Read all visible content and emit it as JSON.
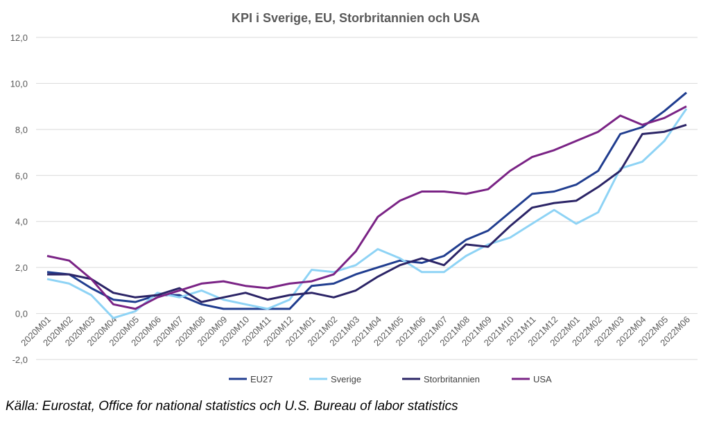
{
  "chart_data": {
    "type": "line",
    "title": "KPI i Sverige, EU, Storbritannien och USA",
    "xlabel": "",
    "ylabel": "",
    "ylim": [
      -2,
      12
    ],
    "yticks": [
      -2,
      0,
      2,
      4,
      6,
      8,
      10,
      12
    ],
    "ytick_labels": [
      "-2,0",
      "0,0",
      "2,0",
      "4,0",
      "6,0",
      "8,0",
      "10,0",
      "12,0"
    ],
    "grid": true,
    "legend_position": "bottom",
    "categories": [
      "2020M01",
      "2020M02",
      "2020M03",
      "2020M04",
      "2020M05",
      "2020M06",
      "2020M07",
      "2020M08",
      "2020M09",
      "2020M10",
      "2020M11",
      "2020M12",
      "2021M01",
      "2021M02",
      "2021M03",
      "2021M04",
      "2021M05",
      "2021M06",
      "2021M07",
      "2021M08",
      "2021M09",
      "2021M10",
      "2021M11",
      "2021M12",
      "2022M01",
      "2022M02",
      "2022M03",
      "2022M04",
      "2022M05",
      "2022M06"
    ],
    "series": [
      {
        "name": "EU27",
        "color": "#203D8F",
        "values": [
          1.8,
          1.7,
          1.1,
          0.6,
          0.5,
          0.8,
          0.8,
          0.4,
          0.2,
          0.2,
          0.2,
          0.2,
          1.2,
          1.3,
          1.7,
          2.0,
          2.3,
          2.2,
          2.5,
          3.2,
          3.6,
          4.4,
          5.2,
          5.3,
          5.6,
          6.2,
          7.8,
          8.1,
          8.8,
          9.6
        ]
      },
      {
        "name": "Sverige",
        "color": "#8ED3F5",
        "values": [
          1.5,
          1.3,
          0.8,
          -0.2,
          0.1,
          0.9,
          0.7,
          1.0,
          0.6,
          0.4,
          0.2,
          0.6,
          1.9,
          1.8,
          2.1,
          2.8,
          2.4,
          1.8,
          1.8,
          2.5,
          3.0,
          3.3,
          3.9,
          4.5,
          3.9,
          4.4,
          6.3,
          6.6,
          7.5,
          8.9
        ]
      },
      {
        "name": "Storbritannien",
        "color": "#2B2466",
        "values": [
          1.7,
          1.7,
          1.5,
          0.9,
          0.7,
          0.8,
          1.1,
          0.5,
          0.7,
          0.9,
          0.6,
          0.8,
          0.9,
          0.7,
          1.0,
          1.6,
          2.1,
          2.4,
          2.1,
          3.0,
          2.9,
          3.8,
          4.6,
          4.8,
          4.9,
          5.5,
          6.2,
          7.8,
          7.9,
          8.2
        ]
      },
      {
        "name": "USA",
        "color": "#7A2385",
        "values": [
          2.5,
          2.3,
          1.5,
          0.4,
          0.2,
          0.7,
          1.0,
          1.3,
          1.4,
          1.2,
          1.1,
          1.3,
          1.4,
          1.7,
          2.7,
          4.2,
          4.9,
          5.3,
          5.3,
          5.2,
          5.4,
          6.2,
          6.8,
          7.1,
          7.5,
          7.9,
          8.6,
          8.2,
          8.5,
          9.0
        ]
      }
    ]
  },
  "source": "Källa: Eurostat, Office for national statistics och U.S. Bureau of labor statistics"
}
